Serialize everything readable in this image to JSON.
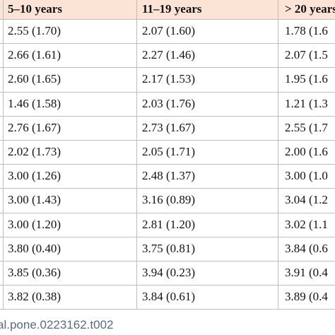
{
  "table": {
    "header": [
      "5–10 years",
      "11–19 years",
      "> 20 years"
    ],
    "rows": [
      [
        "2.55 (1.70)",
        "2.07 (1.60)",
        "1.78 (1.6"
      ],
      [
        "2.66 (1.61)",
        "2.27 (1.46)",
        "2.07 (1.5"
      ],
      [
        "2.60 (1.65)",
        "2.17 (1.53)",
        "1.95 (1.6"
      ],
      [
        "1.46 (1.58)",
        "2.03 (1.76)",
        "1.21 (1.3"
      ],
      [
        "2.76 (1.67)",
        "2.73 (1.67)",
        "2.55 (1.7"
      ],
      [
        "2.02 (1.73)",
        "2.05 (1.71)",
        "2.00 (1.6"
      ],
      [
        "3.00 (1.26)",
        "2.48 (1.37)",
        "3.00 (1.0"
      ],
      [
        "3.00 (1.43)",
        "3.16 (0.89)",
        "3.04 (1.2"
      ],
      [
        "3.00 (1.20)",
        "2.81 (1.20)",
        "3.02 (1.1"
      ],
      [
        "3.80 (0.40)",
        "3.75 (0.81)",
        "3.84 (0.6"
      ],
      [
        "3.85 (0.36)",
        "3.94 (0.23)",
        "3.91 (0.4"
      ],
      [
        "3.82 (0.38)",
        "3.84 (0.61)",
        "3.89 (0.4"
      ]
    ]
  },
  "footer": "al.pone.0223162.t002"
}
